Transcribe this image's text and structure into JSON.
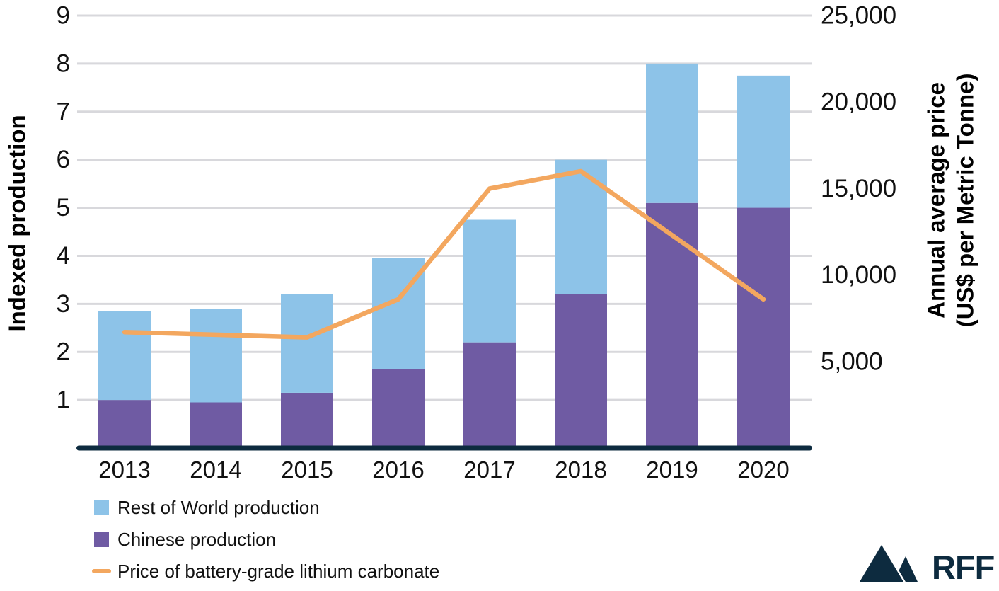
{
  "chart_data": {
    "type": "bar",
    "subtype": "stacked-bar-with-line-overlay",
    "categories": [
      "2013",
      "2014",
      "2015",
      "2016",
      "2017",
      "2018",
      "2019",
      "2020"
    ],
    "series": [
      {
        "name": "Rest of World production",
        "type": "bar",
        "stack": "top",
        "axis": "left",
        "color": "#8DC3E8",
        "values": [
          1.85,
          1.95,
          2.05,
          2.3,
          2.55,
          2.8,
          2.9,
          2.75
        ]
      },
      {
        "name": "Chinese production",
        "type": "bar",
        "stack": "bottom",
        "axis": "left",
        "color": "#6F5BA3",
        "values": [
          1.0,
          0.95,
          1.15,
          1.65,
          2.2,
          3.2,
          5.1,
          5.0
        ]
      },
      {
        "name": "Price of battery-grade lithium carbonate",
        "type": "line",
        "axis": "right",
        "color": "#F3A75F",
        "values": [
          6700,
          6550,
          6400,
          8600,
          15000,
          16000,
          12300,
          8600
        ]
      }
    ],
    "left_axis": {
      "label": "Indexed production",
      "min": 0,
      "max": 9,
      "tick_values": [
        1,
        2,
        3,
        4,
        5,
        6,
        7,
        8,
        9
      ],
      "tick_labels": [
        "1",
        "2",
        "3",
        "4",
        "5",
        "6",
        "7",
        "8",
        "9"
      ]
    },
    "right_axis": {
      "label_line1": "Annual average price",
      "label_line2": "(US$ per Metric Tonne)",
      "min": 0,
      "max": 25000,
      "tick_values": [
        5000,
        10000,
        15000,
        20000,
        25000
      ],
      "tick_labels": [
        "5,000",
        "10,000",
        "15,000",
        "20,000",
        "25,000"
      ]
    },
    "grid": true,
    "legend_position": "bottom-left",
    "colors": {
      "grid": "#D8D8DC",
      "axis_line": "#0D2B3F",
      "background": "#FFFFFF",
      "text": "#111111"
    }
  },
  "logo": {
    "text": "RFF"
  }
}
